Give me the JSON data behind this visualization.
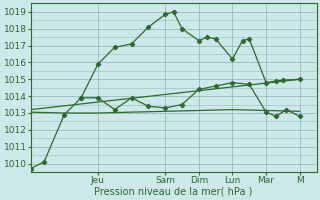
{
  "background_color": "#cce8e8",
  "grid_color": "#99bbbb",
  "line_color": "#2d6a2d",
  "xlabel": "Pression niveau de la mer( hPa )",
  "ylim": [
    1009.5,
    1019.5
  ],
  "xlim": [
    0,
    8.5
  ],
  "yticks": [
    1010,
    1011,
    1012,
    1013,
    1014,
    1015,
    1016,
    1017,
    1018,
    1019
  ],
  "day_labels": [
    "Jeu",
    "Sam",
    "Dim",
    "Lun",
    "Mar",
    "M"
  ],
  "day_positions": [
    2.0,
    4.0,
    5.0,
    6.0,
    7.0,
    8.0
  ],
  "series1_x": [
    0.0,
    0.4,
    1.0,
    1.5,
    2.0,
    2.5,
    3.0,
    3.5,
    4.0,
    4.25,
    4.5,
    5.0,
    5.25,
    5.5,
    6.0,
    6.3,
    6.5,
    7.0,
    7.3,
    7.5,
    8.0
  ],
  "series1_y": [
    1009.7,
    1010.1,
    1012.9,
    1013.9,
    1015.9,
    1016.9,
    1017.1,
    1018.1,
    1018.85,
    1019.0,
    1018.0,
    1017.3,
    1017.5,
    1017.4,
    1016.2,
    1017.3,
    1017.4,
    1014.8,
    1014.9,
    1014.95,
    1015.0
  ],
  "series2_x": [
    1.5,
    2.0,
    2.5,
    3.0,
    3.5,
    4.0,
    4.5,
    5.0,
    5.5,
    6.0,
    6.5,
    7.0,
    7.3,
    7.6,
    8.0
  ],
  "series2_y": [
    1013.9,
    1013.9,
    1013.2,
    1013.9,
    1013.4,
    1013.3,
    1013.5,
    1014.4,
    1014.6,
    1014.8,
    1014.7,
    1013.05,
    1012.8,
    1013.2,
    1012.8
  ],
  "series3_x": [
    0.0,
    1.0,
    2.0,
    3.0,
    4.0,
    5.0,
    6.0,
    7.0,
    8.0
  ],
  "series3_y": [
    1013.05,
    1013.0,
    1013.0,
    1013.05,
    1013.1,
    1013.15,
    1013.2,
    1013.15,
    1013.1
  ],
  "series4_x": [
    0.0,
    8.0
  ],
  "series4_y": [
    1013.2,
    1015.0
  ]
}
